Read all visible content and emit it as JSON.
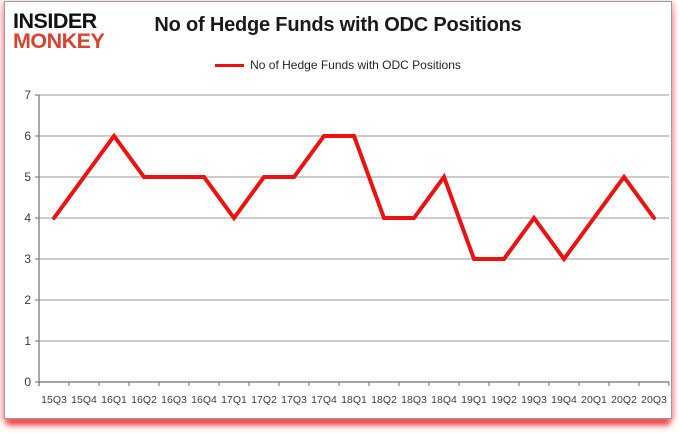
{
  "logo": {
    "line1": "INSIDER",
    "line2": "MONKEY",
    "line1_color": "#111111",
    "line2_color": "#d9422e"
  },
  "header": {
    "title": "No of Hedge Funds with ODC Positions"
  },
  "legend": {
    "label": "No of Hedge Funds with ODC Positions",
    "swatch_color": "#ee1111"
  },
  "chart_data": {
    "type": "line",
    "title": "No of Hedge Funds with ODC Positions",
    "categories": [
      "15Q3",
      "15Q4",
      "16Q1",
      "16Q2",
      "16Q3",
      "16Q4",
      "17Q1",
      "17Q2",
      "17Q3",
      "17Q4",
      "18Q1",
      "18Q2",
      "18Q3",
      "18Q4",
      "19Q1",
      "19Q2",
      "19Q3",
      "19Q4",
      "20Q1",
      "20Q2",
      "20Q3"
    ],
    "series": [
      {
        "name": "No of Hedge Funds with ODC Positions",
        "values": [
          4,
          5,
          6,
          5,
          5,
          5,
          4,
          5,
          5,
          6,
          6,
          4,
          4,
          5,
          3,
          3,
          4,
          3,
          4,
          5,
          4
        ]
      }
    ],
    "xlabel": "",
    "ylabel": "",
    "ylim": [
      0,
      7
    ],
    "yticks": [
      0,
      1,
      2,
      3,
      4,
      5,
      6,
      7
    ],
    "grid": true,
    "legend_position": "top-center",
    "line_color": "#ee1111",
    "grid_color": "#9a9a9a",
    "axis_color": "#6f6f6f"
  }
}
